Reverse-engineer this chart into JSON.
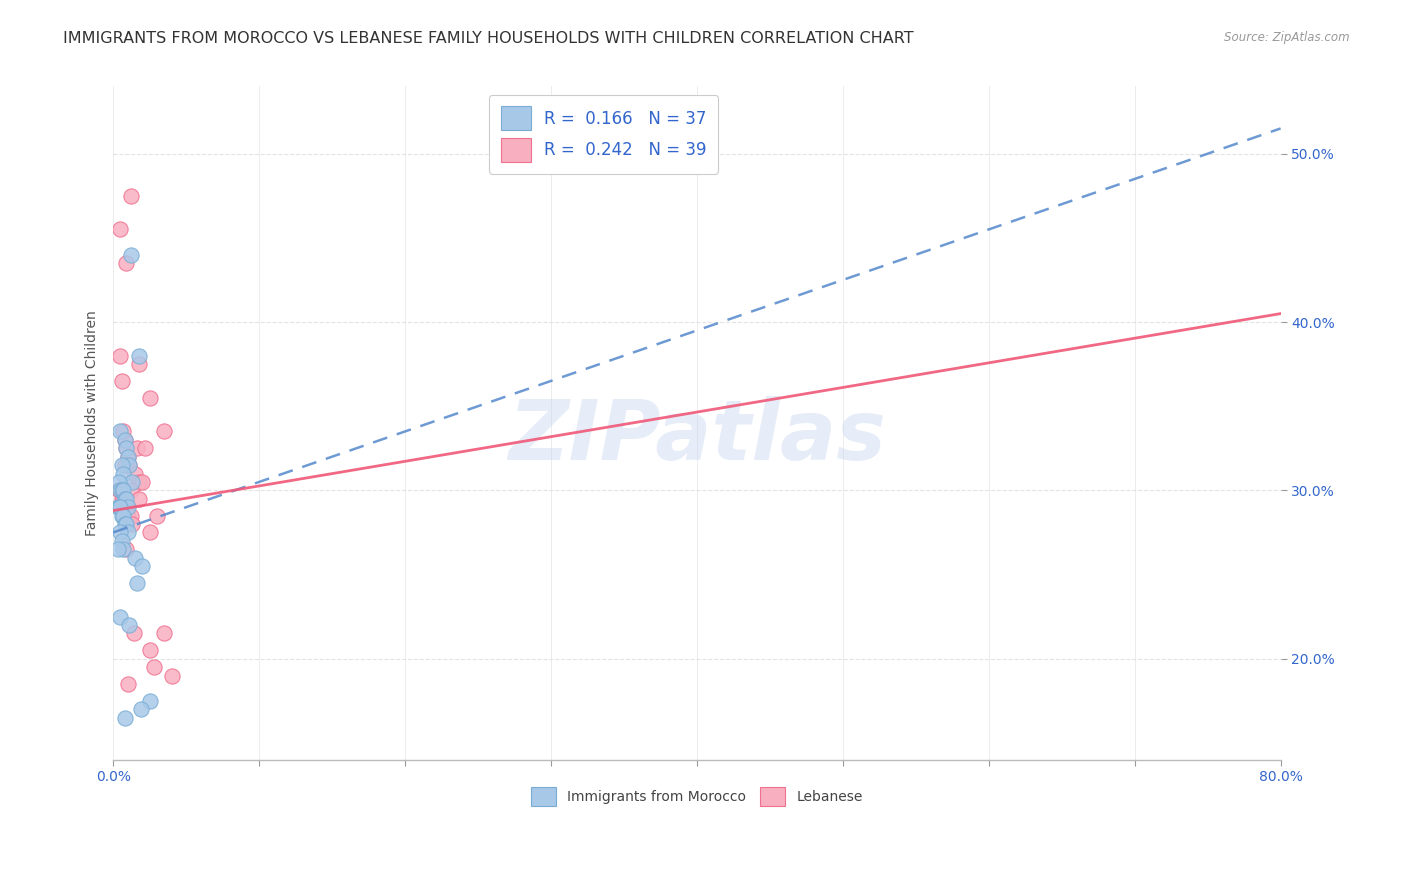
{
  "title": "IMMIGRANTS FROM MOROCCO VS LEBANESE FAMILY HOUSEHOLDS WITH CHILDREN CORRELATION CHART",
  "source": "Source: ZipAtlas.com",
  "ylabel": "Family Households with Children",
  "x_min": 0.0,
  "x_max": 80.0,
  "y_min": 14.0,
  "y_max": 54.0,
  "x_ticks": [
    0.0,
    10.0,
    20.0,
    30.0,
    40.0,
    50.0,
    60.0,
    70.0,
    80.0
  ],
  "y_ticks": [
    20.0,
    30.0,
    40.0,
    50.0
  ],
  "y_tick_labels": [
    "20.0%",
    "30.0%",
    "40.0%",
    "50.0%"
  ],
  "morocco_color": "#a8c8e8",
  "lebanese_color": "#f8b0c0",
  "morocco_edge_color": "#7aadd4",
  "lebanese_edge_color": "#f07090",
  "morocco_trend_color": "#5588cc",
  "lebanese_trend_color": "#f05878",
  "background_color": "#ffffff",
  "grid_color": "#e0e0e0",
  "legend_R1": "0.166",
  "legend_N1": "37",
  "legend_R2": "0.242",
  "legend_N2": "39",
  "legend_color": "#3366cc",
  "morocco_trend_x0": 0.0,
  "morocco_trend_y0": 27.5,
  "morocco_trend_x1": 80.0,
  "morocco_trend_y1": 51.5,
  "lebanese_trend_x0": 0.0,
  "lebanese_trend_y0": 28.8,
  "lebanese_trend_x1": 80.0,
  "lebanese_trend_y1": 40.5,
  "morocco_x": [
    1.2,
    1.8,
    0.5,
    0.8,
    0.9,
    1.0,
    1.1,
    0.6,
    0.7,
    1.3,
    0.4,
    0.5,
    0.6,
    0.7,
    0.8,
    0.9,
    1.0,
    0.3,
    0.4,
    0.5,
    0.6,
    0.7,
    0.8,
    0.9,
    1.0,
    0.5,
    0.6,
    0.7,
    1.5,
    2.0,
    1.6,
    2.5,
    1.9,
    0.3,
    0.5,
    1.1,
    0.8
  ],
  "morocco_y": [
    44.0,
    38.0,
    33.5,
    33.0,
    32.5,
    32.0,
    31.5,
    31.5,
    31.0,
    30.5,
    30.5,
    30.0,
    30.0,
    30.0,
    29.5,
    29.5,
    29.0,
    29.0,
    29.0,
    29.0,
    28.5,
    28.5,
    28.0,
    28.0,
    27.5,
    27.5,
    27.0,
    26.5,
    26.0,
    25.5,
    24.5,
    17.5,
    17.0,
    26.5,
    22.5,
    22.0,
    16.5
  ],
  "lebanese_x": [
    2.5,
    3.5,
    0.8,
    0.9,
    1.0,
    1.1,
    1.5,
    1.8,
    2.0,
    0.4,
    0.5,
    0.6,
    0.7,
    0.8,
    0.9,
    1.0,
    1.2,
    1.3,
    0.5,
    0.6,
    0.7,
    1.6,
    2.2,
    0.8,
    1.2,
    1.8,
    3.0,
    2.5,
    0.9,
    1.4,
    3.5,
    2.8,
    4.0,
    0.5,
    0.9,
    1.2,
    1.8,
    2.5,
    1.0
  ],
  "lebanese_y": [
    35.5,
    33.5,
    33.0,
    32.5,
    32.0,
    31.5,
    31.0,
    30.5,
    30.5,
    30.0,
    30.0,
    29.5,
    29.5,
    29.0,
    29.0,
    28.5,
    28.5,
    28.0,
    38.0,
    36.5,
    33.5,
    32.5,
    32.5,
    31.5,
    30.0,
    29.5,
    28.5,
    27.5,
    26.5,
    21.5,
    21.5,
    19.5,
    19.0,
    45.5,
    43.5,
    47.5,
    37.5,
    20.5,
    18.5
  ],
  "watermark_text": "ZIPatlas",
  "title_fontsize": 11.5,
  "axis_label_fontsize": 10,
  "tick_fontsize": 10,
  "legend_fontsize": 12
}
